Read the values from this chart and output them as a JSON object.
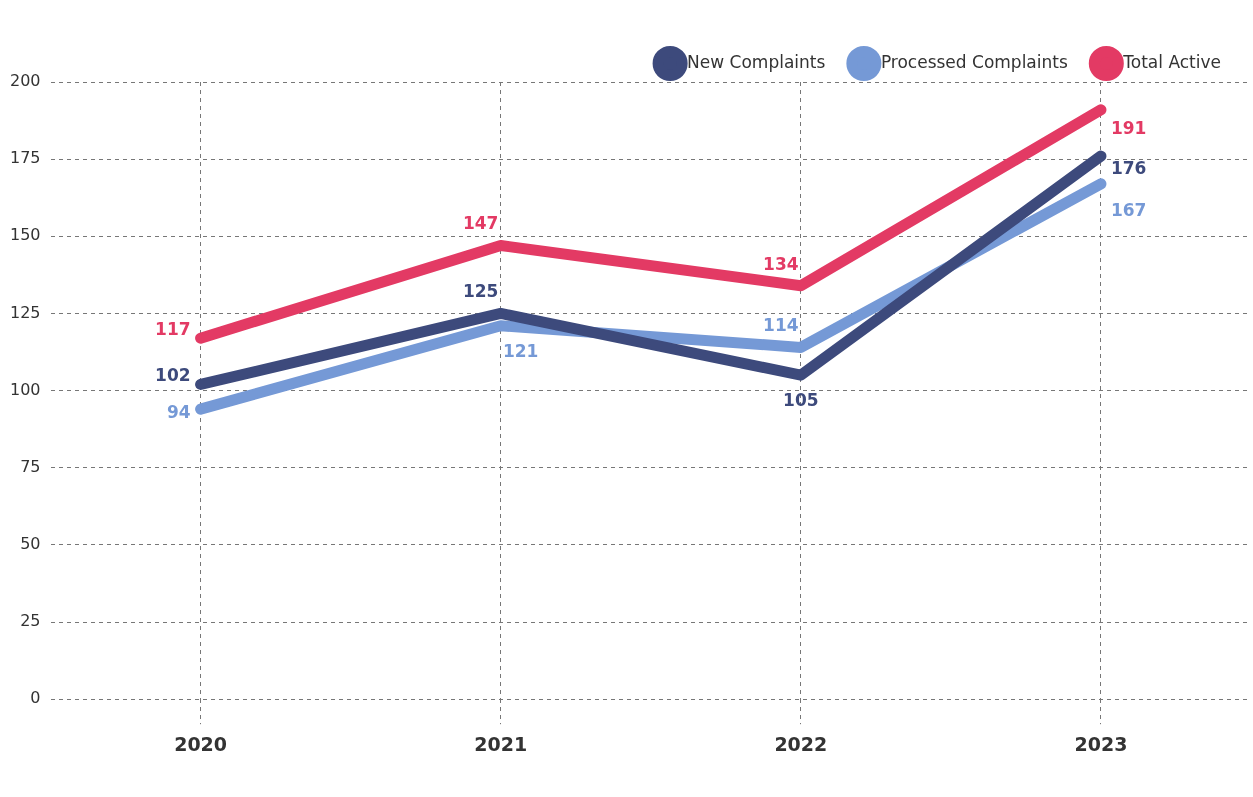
{
  "chart_data": {
    "type": "line",
    "categories": [
      "2020",
      "2021",
      "2022",
      "2023"
    ],
    "series": [
      {
        "name": "New Complaints",
        "color": "#3d4a7c",
        "values": [
          102,
          125,
          105,
          176
        ]
      },
      {
        "name": "Processed Complaints",
        "color": "#7599d6",
        "values": [
          94,
          121,
          114,
          167
        ]
      },
      {
        "name": "Total Active",
        "color": "#e33a64",
        "values": [
          117,
          147,
          134,
          191
        ]
      }
    ],
    "ylim": [
      0,
      200
    ],
    "yticks": [
      0,
      25,
      50,
      75,
      100,
      125,
      150,
      175,
      200
    ],
    "grid": true,
    "legend": "top right",
    "data_labels": true,
    "marker": "none",
    "line_style": "solid"
  }
}
